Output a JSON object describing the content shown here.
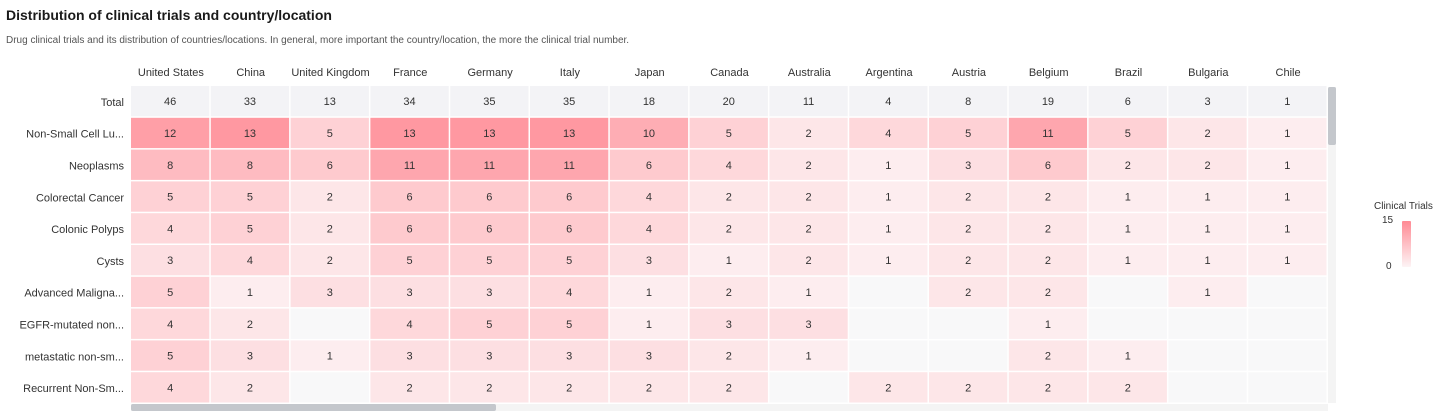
{
  "title": "Distribution of clinical trials and country/location",
  "subtitle": "Drug clinical trials and its distribution of countries/locations. In general, more important the country/location, the more the clinical trial number.",
  "legend": {
    "title": "Clinical Trials",
    "max_label": "15",
    "min_label": "0"
  },
  "colors": {
    "high": "#ff8a94",
    "low": "#fdf4f5",
    "empty": "#f8f8f9",
    "total_row": "#f3f3f6"
  },
  "chart_data": {
    "type": "heatmap",
    "title": "Distribution of clinical trials and country/location",
    "x_categories": [
      "United States",
      "China",
      "United Kingdom",
      "France",
      "Germany",
      "Italy",
      "Japan",
      "Canada",
      "Australia",
      "Argentina",
      "Austria",
      "Belgium",
      "Brazil",
      "Bulgaria",
      "Chile"
    ],
    "y_categories": [
      "Total",
      "Non-Small Cell Lu...",
      "Neoplasms",
      "Colorectal Cancer",
      "Colonic Polyps",
      "Cysts",
      "Advanced Maligna...",
      "EGFR-mutated non...",
      "metastatic non-sm...",
      "Recurrent Non-Sm..."
    ],
    "values": [
      [
        46,
        33,
        13,
        34,
        35,
        35,
        18,
        20,
        11,
        4,
        8,
        19,
        6,
        3,
        1
      ],
      [
        12,
        13,
        5,
        13,
        13,
        13,
        10,
        5,
        2,
        4,
        5,
        11,
        5,
        2,
        1
      ],
      [
        8,
        8,
        6,
        11,
        11,
        11,
        6,
        4,
        2,
        1,
        3,
        6,
        2,
        2,
        1
      ],
      [
        5,
        5,
        2,
        6,
        6,
        6,
        4,
        2,
        2,
        1,
        2,
        2,
        1,
        1,
        1
      ],
      [
        4,
        5,
        2,
        6,
        6,
        6,
        4,
        2,
        2,
        1,
        2,
        2,
        1,
        1,
        1
      ],
      [
        3,
        4,
        2,
        5,
        5,
        5,
        3,
        1,
        2,
        1,
        2,
        2,
        1,
        1,
        1
      ],
      [
        5,
        1,
        3,
        3,
        3,
        4,
        1,
        2,
        1,
        null,
        2,
        2,
        null,
        1,
        null
      ],
      [
        4,
        2,
        null,
        4,
        5,
        5,
        1,
        3,
        3,
        null,
        null,
        1,
        null,
        null,
        null
      ],
      [
        5,
        3,
        1,
        3,
        3,
        3,
        3,
        2,
        1,
        null,
        null,
        2,
        1,
        null,
        null
      ],
      [
        4,
        2,
        null,
        2,
        2,
        2,
        2,
        2,
        null,
        2,
        2,
        2,
        2,
        null,
        null
      ]
    ],
    "color_range": [
      0,
      15
    ]
  }
}
